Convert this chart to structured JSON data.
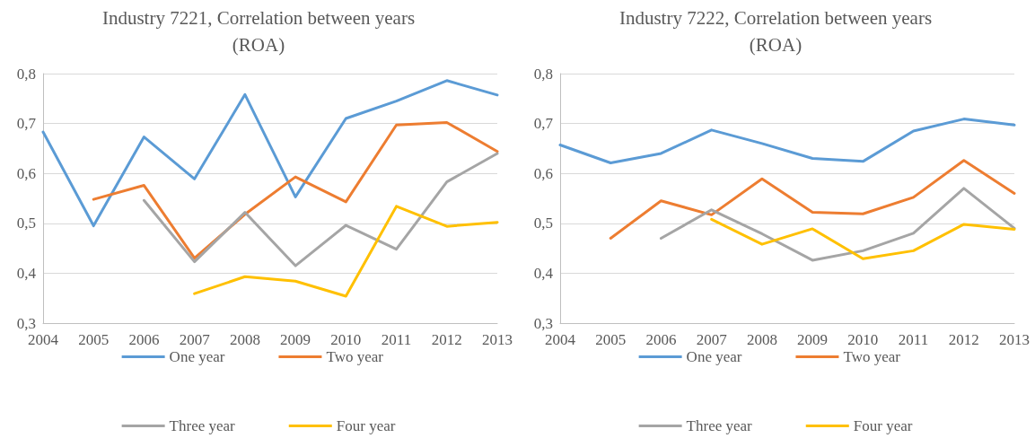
{
  "chart_data": [
    {
      "type": "line",
      "title": "Industry 7221, Correlation between years (ROA)",
      "categories": [
        "2004",
        "2005",
        "2006",
        "2007",
        "2008",
        "2009",
        "2010",
        "2011",
        "2012",
        "2013"
      ],
      "ylim": [
        0.3,
        0.8
      ],
      "yticks": [
        {
          "value": 0.3,
          "label": "0,3"
        },
        {
          "value": 0.4,
          "label": "0,4"
        },
        {
          "value": 0.5,
          "label": "0,5"
        },
        {
          "value": 0.6,
          "label": "0,6"
        },
        {
          "value": 0.7,
          "label": "0,7"
        },
        {
          "value": 0.8,
          "label": "0,8"
        }
      ],
      "grid": "y",
      "legend": "bottom",
      "marker": "none",
      "series": [
        {
          "name": "One year",
          "color": "#5b9bd5",
          "values": [
            0.683,
            0.495,
            0.673,
            0.589,
            0.758,
            0.553,
            0.71,
            0.745,
            0.786,
            0.757
          ]
        },
        {
          "name": "Two year",
          "color": "#ed7d31",
          "values": [
            null,
            0.548,
            0.576,
            0.43,
            0.518,
            0.593,
            0.543,
            0.697,
            0.702,
            0.644
          ]
        },
        {
          "name": "Three year",
          "color": "#a5a5a5",
          "values": [
            null,
            null,
            0.546,
            0.423,
            0.522,
            0.415,
            0.496,
            0.448,
            0.583,
            0.64
          ]
        },
        {
          "name": "Four year",
          "color": "#ffc000",
          "values": [
            null,
            null,
            null,
            0.359,
            0.393,
            0.384,
            0.354,
            0.534,
            0.494,
            0.502
          ]
        }
      ]
    },
    {
      "type": "line",
      "title": "Industry 7222, Correlation between years (ROA)",
      "categories": [
        "2004",
        "2005",
        "2006",
        "2007",
        "2008",
        "2009",
        "2010",
        "2011",
        "2012",
        "2013"
      ],
      "ylim": [
        0.3,
        0.8
      ],
      "yticks": [
        {
          "value": 0.3,
          "label": "0,3"
        },
        {
          "value": 0.4,
          "label": "0,4"
        },
        {
          "value": 0.5,
          "label": "0,5"
        },
        {
          "value": 0.6,
          "label": "0,6"
        },
        {
          "value": 0.7,
          "label": "0,7"
        },
        {
          "value": 0.8,
          "label": "0,8"
        }
      ],
      "grid": "y",
      "legend": "bottom",
      "marker": "none",
      "series": [
        {
          "name": "One year",
          "color": "#5b9bd5",
          "values": [
            0.657,
            0.621,
            0.64,
            0.687,
            0.66,
            0.63,
            0.624,
            0.685,
            0.709,
            0.697
          ]
        },
        {
          "name": "Two year",
          "color": "#ed7d31",
          "values": [
            null,
            0.47,
            0.545,
            0.517,
            0.589,
            0.522,
            0.519,
            0.552,
            0.626,
            0.56
          ]
        },
        {
          "name": "Three year",
          "color": "#a5a5a5",
          "values": [
            null,
            null,
            0.47,
            0.527,
            0.479,
            0.426,
            0.445,
            0.48,
            0.57,
            0.49
          ]
        },
        {
          "name": "Four year",
          "color": "#ffc000",
          "values": [
            null,
            null,
            null,
            0.508,
            0.458,
            0.489,
            0.429,
            0.445,
            0.498,
            0.488
          ]
        }
      ]
    }
  ]
}
